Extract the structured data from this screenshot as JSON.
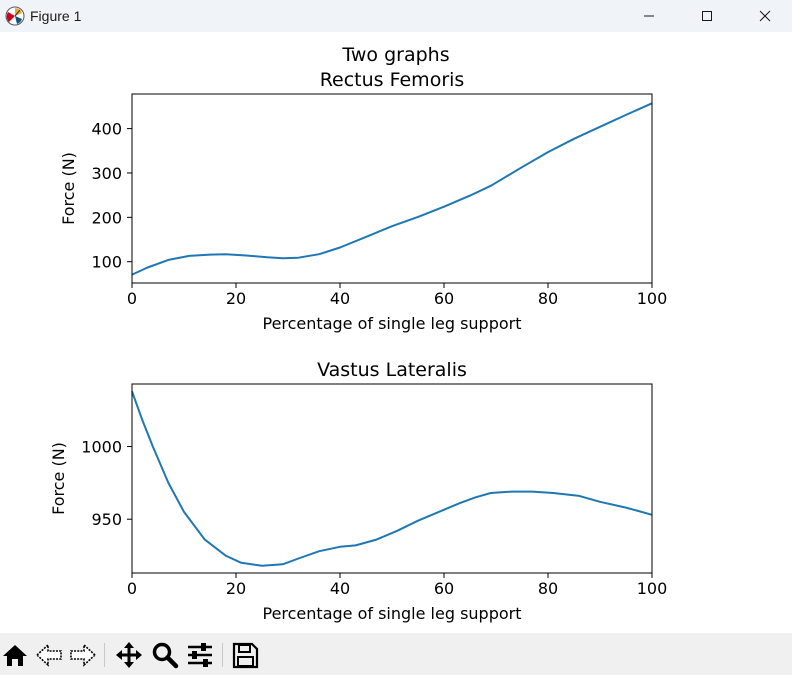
{
  "window": {
    "title": "Figure 1"
  },
  "figure": {
    "suptitle": "Two graphs"
  },
  "toolbar": {
    "buttons": [
      "home-icon",
      "back-icon",
      "forward-icon",
      "pan-icon",
      "zoom-icon",
      "configure-subplots-icon",
      "save-icon"
    ]
  },
  "chart_data": [
    {
      "type": "line",
      "title": "Rectus Femoris",
      "xlabel": "Percentage of single leg support",
      "ylabel": "Force (N)",
      "xlim": [
        0,
        100
      ],
      "ylim": [
        52,
        478
      ],
      "xticks": [
        0,
        20,
        40,
        60,
        80,
        100
      ],
      "yticks": [
        100,
        200,
        300,
        400
      ],
      "series": [
        {
          "color": "#1f77b4",
          "x": [
            0,
            3,
            7,
            11,
            15,
            18,
            22,
            26,
            29,
            32,
            36,
            40,
            45,
            50,
            55,
            60,
            65,
            69,
            75,
            80,
            85,
            90,
            95,
            100
          ],
          "y": [
            71,
            87,
            104,
            113,
            116,
            117,
            114,
            110,
            108,
            109,
            117,
            132,
            156,
            180,
            201,
            224,
            249,
            271,
            313,
            347,
            377,
            404,
            431,
            457
          ]
        }
      ]
    },
    {
      "type": "line",
      "title": "Vastus Lateralis",
      "xlabel": "Percentage of single leg support",
      "ylabel": "Force (N)",
      "xlim": [
        0,
        100
      ],
      "ylim": [
        913,
        1043
      ],
      "xticks": [
        0,
        20,
        40,
        60,
        80,
        100
      ],
      "yticks": [
        950,
        1000
      ],
      "series": [
        {
          "color": "#1f77b4",
          "x": [
            0,
            2,
            4,
            7,
            10,
            14,
            18,
            21,
            25,
            29,
            32,
            36,
            40,
            43,
            47,
            51,
            55,
            59,
            63,
            66,
            69,
            73,
            77,
            81,
            86,
            90,
            95,
            100
          ],
          "y": [
            1038,
            1018,
            1000,
            975,
            955,
            936,
            925,
            920,
            918,
            919,
            923,
            928,
            931,
            932,
            936,
            942,
            949,
            955,
            961,
            965,
            968,
            969,
            969,
            968,
            966,
            962,
            958,
            953
          ]
        }
      ]
    }
  ]
}
